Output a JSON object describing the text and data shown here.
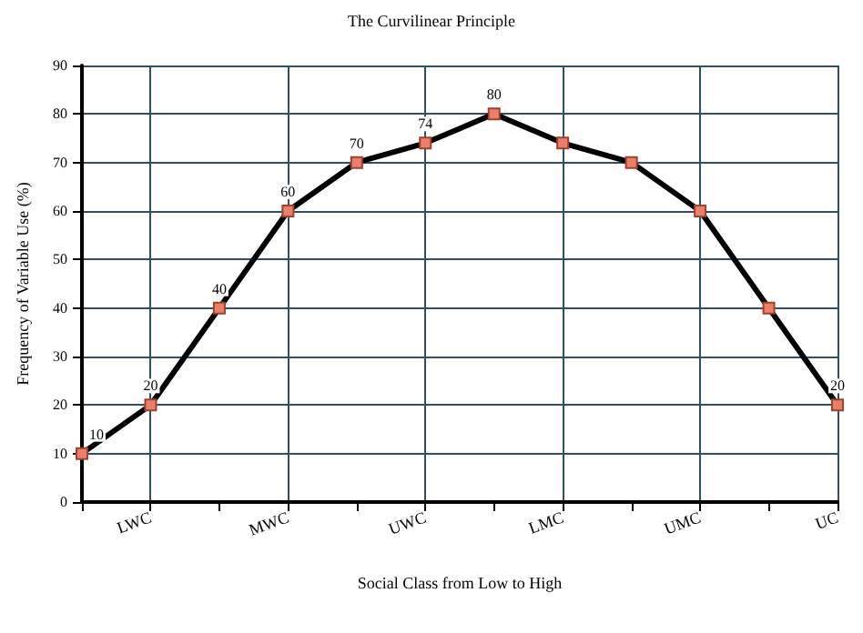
{
  "chart_data": {
    "type": "line",
    "title": "The Curvilinear Principle",
    "xlabel": "Social Class from Low to High",
    "ylabel": "Frequency of Variable Use (%)",
    "categories": [
      null,
      "LWC",
      null,
      "MWC",
      null,
      "UWC",
      null,
      "LMC",
      null,
      "UMC",
      null,
      "UC"
    ],
    "series": [
      {
        "color": "#000000",
        "values": [
          10,
          20,
          40,
          60,
          70,
          74,
          80,
          74,
          70,
          60,
          40,
          20
        ],
        "value_labels": [
          "10",
          "20",
          "40",
          "60",
          "70",
          "74",
          "80",
          null,
          null,
          null,
          null,
          "20"
        ]
      }
    ],
    "ylim": [
      0,
      90
    ],
    "yticks": [
      0,
      10,
      20,
      30,
      40,
      50,
      60,
      70,
      80,
      90
    ],
    "grid": true,
    "marker": "square",
    "line_style": "solid"
  }
}
